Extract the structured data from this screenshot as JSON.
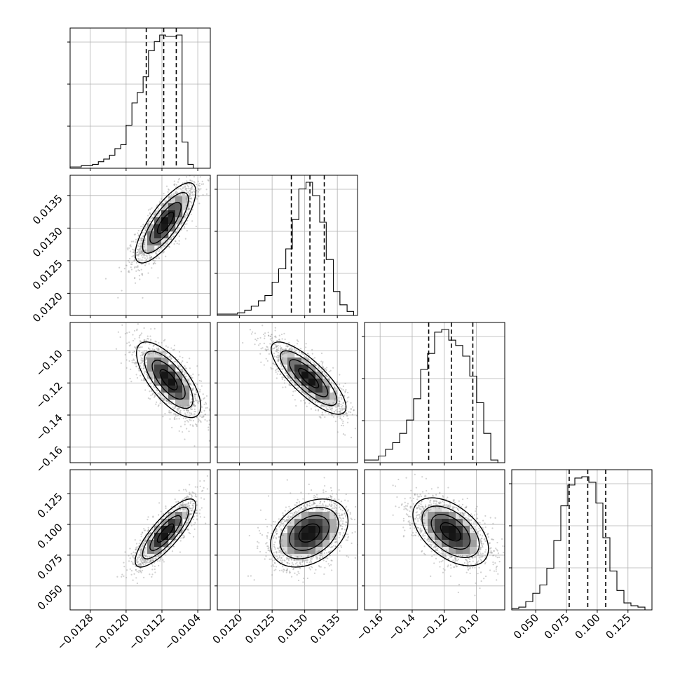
{
  "chart_data": {
    "type": "corner",
    "grid": true,
    "quantiles_style": "dashed black lines",
    "parameters": [
      {
        "range": [
          -0.01325,
          -0.01012
        ],
        "ticks": [
          -0.0128,
          -0.012,
          -0.0112,
          -0.0104
        ],
        "tick_labels": [
          "−0.0128",
          "−0.0120",
          "−0.0112",
          "−0.0104"
        ],
        "quantiles": [
          -0.01155,
          -0.01116,
          -0.01088
        ],
        "hist_x": [
          -0.01325,
          -0.01312,
          -0.013,
          -0.01287,
          -0.01275,
          -0.01262,
          -0.0125,
          -0.01237,
          -0.01225,
          -0.01212,
          -0.012,
          -0.01187,
          -0.01175,
          -0.01162,
          -0.0115,
          -0.01137,
          -0.01125,
          -0.01112,
          -0.011,
          -0.01087,
          -0.01075,
          -0.01062,
          -0.0105,
          -0.01037,
          -0.01025,
          -0.01012
        ],
        "hist_counts": [
          1,
          1,
          2,
          2,
          3,
          5,
          7,
          10,
          15,
          18,
          33,
          50,
          58,
          70,
          90,
          97,
          102,
          101,
          101,
          102,
          20,
          3
        ]
      },
      {
        "range": [
          0.01166,
          0.01381
        ],
        "ticks": [
          0.012,
          0.0125,
          0.013,
          0.0135
        ],
        "tick_labels": [
          "0.0120",
          "0.0125",
          "0.0130",
          "0.0135"
        ],
        "quantiles": [
          0.012795,
          0.01308,
          0.0133
        ],
        "hist_x": [
          0.01166,
          0.01176,
          0.01187,
          0.01197,
          0.01208,
          0.01218,
          0.01229,
          0.01239,
          0.0125,
          0.0126,
          0.01271,
          0.01281,
          0.01291,
          0.01302,
          0.01312,
          0.01323,
          0.01333,
          0.01344,
          0.01354,
          0.01365,
          0.01375,
          0.01381
        ],
        "hist_counts": [
          1,
          1,
          1,
          2,
          4,
          7,
          11,
          15,
          25,
          35,
          50,
          72,
          95,
          100,
          90,
          70,
          42,
          18,
          8,
          3
        ]
      },
      {
        "range": [
          -0.1697,
          -0.0823
        ],
        "ticks": [
          -0.16,
          -0.14,
          -0.12,
          -0.1
        ],
        "tick_labels": [
          "−0.16",
          "−0.14",
          "−0.12",
          "−0.10"
        ],
        "quantiles": [
          -0.1297,
          -0.1156,
          -0.1022
        ],
        "hist_x": [
          -0.1697,
          -0.1653,
          -0.161,
          -0.1566,
          -0.1522,
          -0.1478,
          -0.1435,
          -0.1391,
          -0.1347,
          -0.1304,
          -0.126,
          -0.1216,
          -0.1172,
          -0.1129,
          -0.1085,
          -0.1041,
          -0.0998,
          -0.0954,
          -0.091,
          -0.0866,
          -0.0823
        ],
        "hist_counts": [
          2,
          2,
          5,
          10,
          15,
          22,
          32,
          48,
          70,
          82,
          98,
          100,
          92,
          88,
          80,
          65,
          45,
          22,
          2
        ]
      },
      {
        "range": [
          0.0305,
          0.1445
        ],
        "ticks": [
          0.05,
          0.075,
          0.1,
          0.125
        ],
        "tick_labels": [
          "0.050",
          "0.075",
          "0.100",
          "0.125"
        ],
        "quantiles": [
          0.0772,
          0.0923,
          0.1069
        ],
        "hist_x": [
          0.0305,
          0.0362,
          0.0419,
          0.0476,
          0.0533,
          0.059,
          0.0647,
          0.0704,
          0.0761,
          0.0818,
          0.0875,
          0.0932,
          0.0989,
          0.1046,
          0.1103,
          0.116,
          0.1217,
          0.1274,
          0.1331,
          0.1388,
          0.1445
        ],
        "hist_counts": [
          1,
          2,
          6,
          12,
          18,
          30,
          50,
          75,
          90,
          95,
          96,
          92,
          77,
          52,
          28,
          14,
          5,
          3,
          2
        ]
      }
    ],
    "hist_yticks_fraction": [
      0.3,
      0.6,
      0.9
    ],
    "joint": [
      {
        "row": 1,
        "col": 0,
        "center": [
          -0.01112,
          0.01308
        ],
        "sigma": [
          0.00033,
          0.0003
        ],
        "rho": 0.78,
        "samples": 1800
      },
      {
        "row": 2,
        "col": 0,
        "center": [
          -0.01105,
          -0.118
        ],
        "sigma": [
          0.00035,
          0.0115
        ],
        "rho": -0.7,
        "samples": 1800
      },
      {
        "row": 2,
        "col": 1,
        "center": [
          0.01306,
          -0.117
        ],
        "sigma": [
          0.00028,
          0.011
        ],
        "rho": -0.8,
        "samples": 1800
      },
      {
        "row": 3,
        "col": 0,
        "center": [
          -0.01112,
          0.093
        ],
        "sigma": [
          0.00033,
          0.0135
        ],
        "rho": 0.82,
        "samples": 1800
      },
      {
        "row": 3,
        "col": 1,
        "center": [
          0.01307,
          0.093
        ],
        "sigma": [
          0.00029,
          0.0135
        ],
        "rho": 0.35,
        "samples": 1800
      },
      {
        "row": 3,
        "col": 2,
        "center": [
          -0.116,
          0.094
        ],
        "sigma": [
          0.0115,
          0.0135
        ],
        "rho": -0.5,
        "samples": 1800
      }
    ]
  }
}
